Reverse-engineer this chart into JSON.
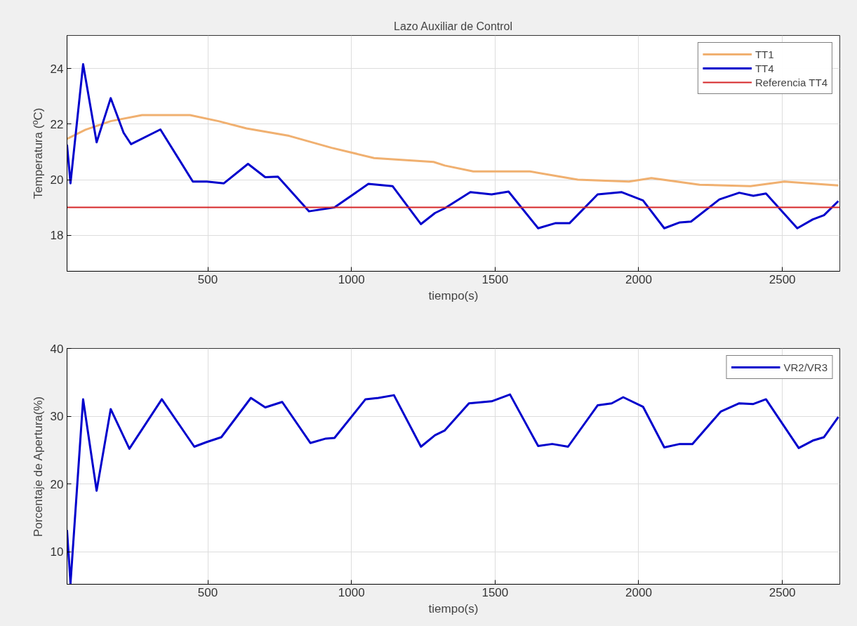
{
  "chart_data": [
    {
      "type": "line",
      "title": "Lazo Auxiliar de Control",
      "xlabel": "tiempo(s)",
      "ylabel": "Temperatura (ºC)",
      "xlim": [
        10,
        2700
      ],
      "xticks": [
        500,
        1000,
        1500,
        2000,
        2500
      ],
      "ylim": [
        16.7,
        25.2
      ],
      "yticks": [
        18,
        20,
        22,
        24
      ],
      "grid": true,
      "legend": "top right",
      "series": [
        {
          "name": "TT1",
          "color": "#f0b070",
          "x": [
            10,
            74,
            162,
            271,
            438,
            537,
            635,
            783,
            931,
            1079,
            1286,
            1325,
            1424,
            1621,
            1788,
            1966,
            2044,
            2212,
            2389,
            2507,
            2695
          ],
          "values": [
            21.47,
            21.8,
            22.11,
            22.33,
            22.33,
            22.11,
            21.85,
            21.58,
            21.15,
            20.78,
            20.64,
            20.51,
            20.3,
            20.3,
            20.0,
            19.93,
            20.06,
            19.82,
            19.77,
            19.93,
            19.79
          ]
        },
        {
          "name": "TT4",
          "color": "#0000cc",
          "x": [
            10,
            22,
            66,
            113,
            162,
            207,
            233,
            335,
            448,
            497,
            556,
            640,
            700,
            744,
            852,
            941,
            1059,
            1143,
            1242,
            1291,
            1325,
            1414,
            1488,
            1547,
            1650,
            1709,
            1759,
            1857,
            1941,
            2015,
            2089,
            2143,
            2182,
            2281,
            2350,
            2399,
            2443,
            2552,
            2606,
            2645,
            2695
          ],
          "values": [
            21.26,
            19.87,
            24.16,
            21.35,
            22.94,
            21.69,
            21.28,
            21.81,
            19.93,
            19.93,
            19.87,
            20.57,
            20.09,
            20.11,
            18.86,
            19.0,
            19.85,
            19.77,
            18.4,
            18.8,
            18.97,
            19.55,
            19.47,
            19.57,
            18.25,
            18.43,
            18.43,
            19.47,
            19.55,
            19.25,
            18.25,
            18.46,
            18.49,
            19.29,
            19.53,
            19.42,
            19.5,
            18.25,
            18.57,
            18.72,
            19.23
          ]
        }
      ],
      "ref_lines": [
        {
          "axis": "y",
          "value": 19.0,
          "label": "Referencia TT4",
          "color": "#d62728"
        }
      ]
    },
    {
      "type": "line",
      "xlabel": "tiempo(s)",
      "ylabel": "Porcentaje de Apertura(%)",
      "xlim": [
        10,
        2700
      ],
      "xticks": [
        500,
        1000,
        1500,
        2000,
        2500
      ],
      "ylim": [
        5.2,
        40
      ],
      "yticks": [
        10,
        20,
        30,
        40
      ],
      "grid": true,
      "legend": "top right",
      "series": [
        {
          "name": "VR2/VR3",
          "color": "#0000cc",
          "x": [
            10,
            22,
            66,
            113,
            162,
            227,
            340,
            453,
            497,
            547,
            650,
            700,
            759,
            857,
            911,
            941,
            1049,
            1094,
            1148,
            1242,
            1291,
            1325,
            1409,
            1488,
            1552,
            1650,
            1699,
            1754,
            1857,
            1906,
            1946,
            2015,
            2089,
            2143,
            2187,
            2286,
            2350,
            2399,
            2443,
            2557,
            2606,
            2645,
            2695
          ],
          "values": [
            13.2,
            5.3,
            32.5,
            19.0,
            31.05,
            25.2,
            32.5,
            25.5,
            26.2,
            26.9,
            32.7,
            31.3,
            32.1,
            26.05,
            26.7,
            26.8,
            32.5,
            32.7,
            33.1,
            25.5,
            27.2,
            27.9,
            31.9,
            32.2,
            33.2,
            25.6,
            25.9,
            25.5,
            31.6,
            31.9,
            32.8,
            31.4,
            25.4,
            25.9,
            25.9,
            30.7,
            31.9,
            31.8,
            32.5,
            25.3,
            26.4,
            26.9,
            29.9
          ]
        }
      ]
    }
  ]
}
